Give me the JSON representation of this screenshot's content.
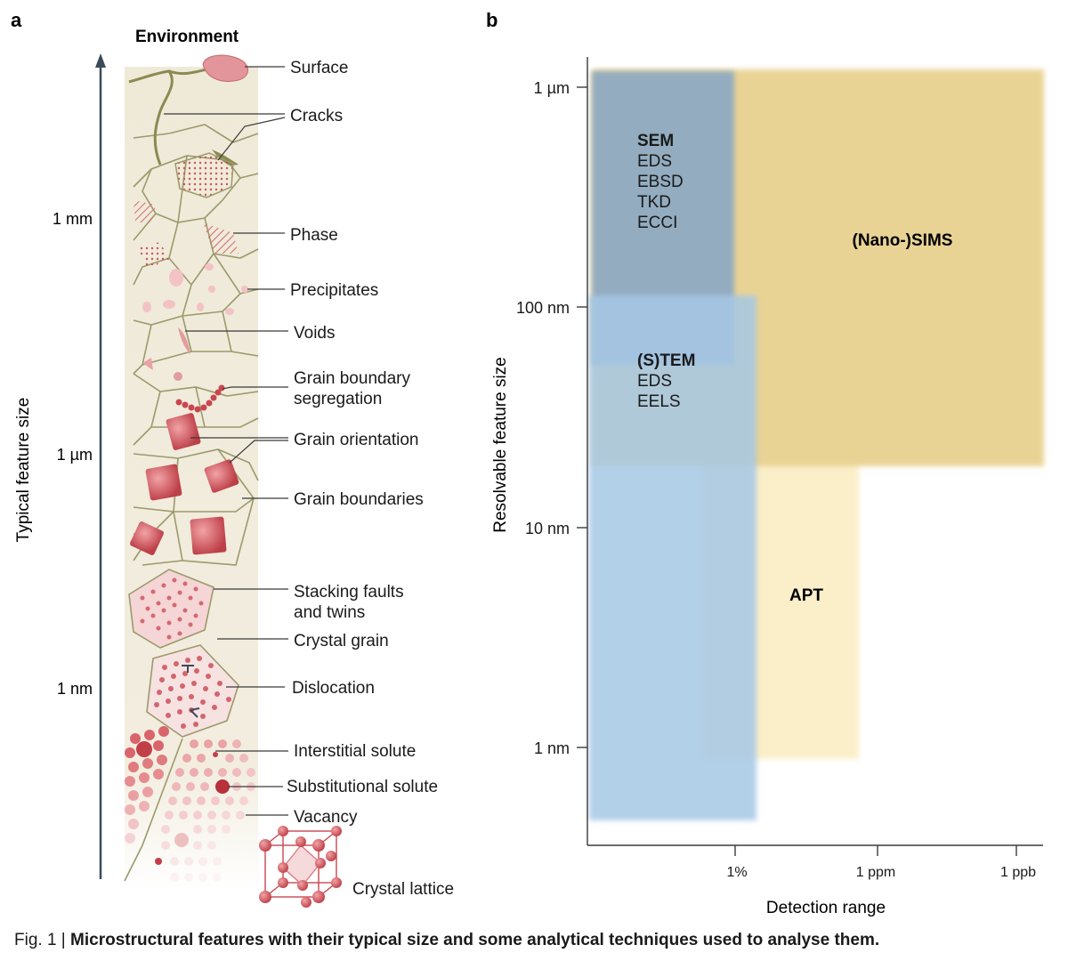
{
  "panel_a": {
    "label": "a",
    "top_title": "Environment",
    "axis_title": "Typical feature size",
    "scale_labels": [
      "1 mm",
      "1 µm",
      "1 nm"
    ],
    "features": [
      "Surface",
      "Cracks",
      "Phase",
      "Precipitates",
      "Voids",
      "Grain boundary",
      "segregation",
      "Grain orientation",
      "Grain boundaries",
      "Stacking faults",
      "and twins",
      "Crystal grain",
      "Dislocation",
      "Interstitial solute",
      "Substitutional solute",
      "Vacancy",
      "Crystal lattice"
    ]
  },
  "panel_b": {
    "label": "b",
    "y_axis_title": "Resolvable feature size",
    "x_axis_title": "Detection range",
    "y_ticks": [
      "1 µm",
      "100 nm",
      "10 nm",
      "1 nm"
    ],
    "x_ticks": [
      "1%",
      "1 ppm",
      "1 ppb"
    ],
    "techniques": {
      "sem": {
        "name": "SEM",
        "methods": [
          "EDS",
          "EBSD",
          "TKD",
          "ECCI"
        ]
      },
      "stem": {
        "name": "(S)TEM",
        "methods": [
          "EDS",
          "EELS"
        ]
      },
      "sims": {
        "name": "(Nano-)SIMS"
      },
      "apt": {
        "name": "APT"
      }
    },
    "colors": {
      "sem": "#8faac2",
      "stem": "#a6c8e6",
      "sims": "#e9d394",
      "apt": "#fbefc9"
    }
  },
  "caption": {
    "figure_number": "Fig. 1 | ",
    "text": "Microstructural features with their typical size and some analytical techniques used to analyse them."
  }
}
